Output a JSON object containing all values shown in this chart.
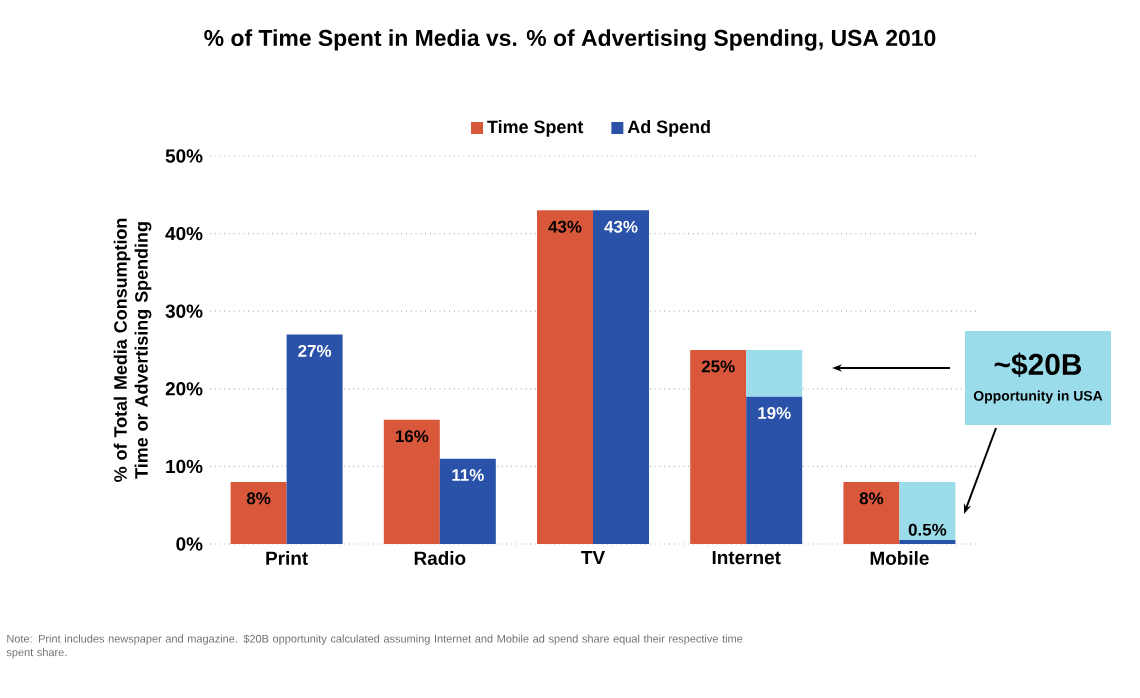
{
  "chart_data": {
    "type": "bar",
    "title": "% of Time Spent in Media vs. % of Advertising Spending, USA 2010",
    "ylabel": "% of Total Media Consumption Time or Advertising Spending",
    "categories": [
      "Print",
      "Radio",
      "TV",
      "Internet",
      "Mobile"
    ],
    "series": [
      {
        "name": "Time Spent",
        "color": "#d9573b",
        "values": [
          8,
          16,
          43,
          25,
          8
        ],
        "value_labels": [
          "8%",
          "16%",
          "43%",
          "25%",
          "8%"
        ]
      },
      {
        "name": "Ad Spend",
        "color": "#2a52a8",
        "values": [
          27,
          11,
          43,
          19,
          0.5
        ],
        "value_labels": [
          "27%",
          "11%",
          "43%",
          "19%",
          "0.5%"
        ]
      },
      {
        "color": "#9adcea",
        "base": [
          null,
          null,
          null,
          19,
          0.5
        ],
        "values": [
          null,
          null,
          null,
          6,
          7.5
        ]
      }
    ],
    "ylim": [
      0,
      50
    ],
    "yticks": [
      {
        "value": 0,
        "label": "0%"
      },
      {
        "value": 10,
        "label": "10%"
      },
      {
        "value": 20,
        "label": "20%"
      },
      {
        "value": 30,
        "label": "30%"
      },
      {
        "value": 40,
        "label": "40%"
      },
      {
        "value": 50,
        "label": "50%"
      }
    ],
    "grid": "y",
    "legend": "top",
    "annotations": [
      "~$20B",
      "Opportunity in USA",
      "Note: Print includes newspaper and magazine. $20B opportunity calculated assuming Internet and Mobile ad spend share equal their respective time spent share."
    ]
  }
}
